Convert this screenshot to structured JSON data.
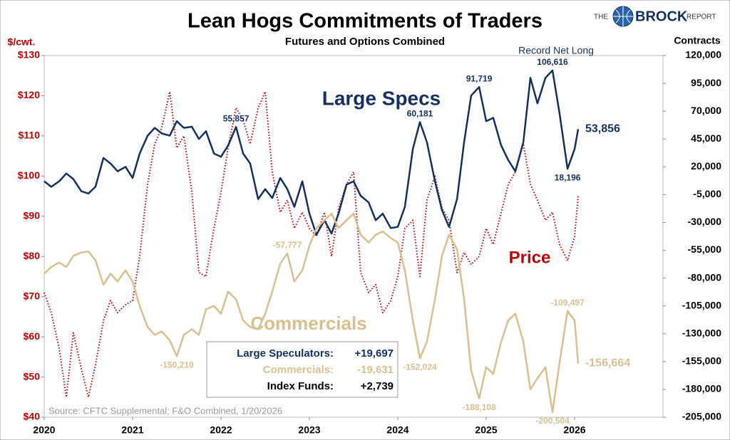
{
  "logo": {
    "pre": "THE",
    "name": "BROCK",
    "post": "REPORT"
  },
  "chart_data": {
    "type": "line",
    "title": "Lean Hogs Commitments of Traders",
    "subtitle": "Futures and Options Combined",
    "y_label": "$/cwt.",
    "y2_label": "Contracts",
    "source": "Source: CFTC Supplemental; F&O Combined, 1/20/2026",
    "annotations": [
      {
        "text": "Record Net Long",
        "color": "#14305e"
      },
      {
        "text": "Large Specs",
        "color": "#14305e"
      },
      {
        "text": "Commercials",
        "color": "#d8bf8f"
      },
      {
        "text": "Price",
        "color": "#c00000"
      }
    ],
    "summary": [
      {
        "label": "Large Speculators:",
        "value": "+19,697",
        "color": "#14305e"
      },
      {
        "label": "Commercials:",
        "value": "-19,631",
        "color": "#d8bf8f"
      },
      {
        "label": "Index Funds:",
        "value": "+2,739",
        "color": "#000000"
      }
    ],
    "xlim": [
      2020,
      2027
    ],
    "xticks": [
      2020,
      2021,
      2022,
      2023,
      2024,
      2025,
      2026
    ],
    "ylim": [
      40,
      130
    ],
    "yticks": [
      {
        "value": 40,
        "label": "$40"
      },
      {
        "value": 50,
        "label": "$50"
      },
      {
        "value": 60,
        "label": "$60"
      },
      {
        "value": 70,
        "label": "$70"
      },
      {
        "value": 80,
        "label": "$80"
      },
      {
        "value": 90,
        "label": "$90"
      },
      {
        "value": 100,
        "label": "$100"
      },
      {
        "value": 110,
        "label": "$110"
      },
      {
        "value": 120,
        "label": "$120"
      },
      {
        "value": 130,
        "label": "$130"
      }
    ],
    "y2lim": [
      -205000,
      120000
    ],
    "y2ticks": [
      {
        "value": 120000,
        "label": "120,000"
      },
      {
        "value": 95000,
        "label": "95,000"
      },
      {
        "value": 70000,
        "label": "70,000"
      },
      {
        "value": 45000,
        "label": "45,000"
      },
      {
        "value": 20000,
        "label": "20,000"
      },
      {
        "value": -5000,
        "label": "-5,000"
      },
      {
        "value": -30000,
        "label": "-30,000"
      },
      {
        "value": -55000,
        "label": "-55,000"
      },
      {
        "value": -80000,
        "label": "-80,000"
      },
      {
        "value": -105000,
        "label": "-105,000"
      },
      {
        "value": -130000,
        "label": "-130,000"
      },
      {
        "value": -155000,
        "label": "-155,000"
      },
      {
        "value": -180000,
        "label": "-180,000"
      },
      {
        "value": -205000,
        "label": "-205,000"
      }
    ],
    "x": [
      2020,
      2020.08,
      2020.17,
      2020.25,
      2020.33,
      2020.42,
      2020.5,
      2020.58,
      2020.67,
      2020.75,
      2020.83,
      2020.92,
      2021,
      2021.08,
      2021.17,
      2021.25,
      2021.33,
      2021.42,
      2021.5,
      2021.58,
      2021.67,
      2021.75,
      2021.83,
      2021.92,
      2022,
      2022.08,
      2022.17,
      2022.25,
      2022.33,
      2022.42,
      2022.5,
      2022.58,
      2022.67,
      2022.75,
      2022.83,
      2022.92,
      2023,
      2023.08,
      2023.17,
      2023.25,
      2023.33,
      2023.42,
      2023.5,
      2023.58,
      2023.67,
      2023.75,
      2023.83,
      2023.92,
      2024,
      2024.08,
      2024.17,
      2024.25,
      2024.33,
      2024.42,
      2024.5,
      2024.58,
      2024.67,
      2024.75,
      2024.83,
      2024.92,
      2025,
      2025.08,
      2025.17,
      2025.25,
      2025.33,
      2025.42,
      2025.5,
      2025.58,
      2025.67,
      2025.75,
      2025.83,
      2025.92,
      2026,
      2026.04
    ],
    "series": [
      {
        "name": "Price",
        "color": "#c00000",
        "style": "dotted",
        "values": [
          71,
          66,
          57,
          45,
          61,
          52,
          45,
          53,
          64,
          69,
          66,
          68,
          69,
          80,
          98,
          108,
          112,
          121,
          107,
          110,
          96,
          76,
          75,
          87,
          96,
          107,
          117,
          114,
          108,
          117,
          121,
          101,
          91,
          94,
          87,
          91,
          87,
          85,
          91,
          80,
          92,
          98,
          101,
          76,
          71,
          73,
          66,
          69,
          75,
          87,
          89,
          75,
          94,
          100,
          92,
          89,
          76,
          81,
          78,
          80,
          87,
          83,
          91,
          98,
          101,
          108,
          98,
          94,
          89,
          91,
          83,
          79,
          85,
          95
        ]
      },
      {
        "name": "Large Specs",
        "color": "#14305e",
        "style": "solid",
        "axis": "y2",
        "values": [
          7000,
          2000,
          7000,
          14000,
          9000,
          -2000,
          -4000,
          2000,
          28000,
          23000,
          16000,
          20000,
          10000,
          32000,
          48000,
          55000,
          50000,
          48000,
          61000,
          55000,
          56000,
          45000,
          52000,
          32000,
          29000,
          39000,
          55857,
          32000,
          23000,
          -9000,
          0,
          -8000,
          10000,
          0,
          -16000,
          7000,
          -22000,
          -41000,
          -28000,
          -40000,
          -22000,
          4000,
          7000,
          -6000,
          -12000,
          -28000,
          -22000,
          -35000,
          -34000,
          -16000,
          36000,
          60181,
          42000,
          7000,
          -19000,
          -34000,
          -9000,
          42000,
          84000,
          91719,
          61000,
          64000,
          39000,
          26000,
          16000,
          42000,
          100000,
          77000,
          100000,
          106616,
          68000,
          18196,
          36000,
          53856
        ],
        "value_labels": [
          null,
          null,
          null,
          null,
          null,
          null,
          null,
          null,
          null,
          null,
          null,
          null,
          null,
          null,
          null,
          null,
          null,
          null,
          null,
          null,
          null,
          null,
          null,
          null,
          null,
          null,
          "55,857",
          null,
          null,
          null,
          null,
          null,
          null,
          null,
          null,
          null,
          null,
          null,
          null,
          null,
          null,
          null,
          null,
          null,
          null,
          null,
          null,
          null,
          null,
          null,
          null,
          "60,181",
          null,
          null,
          null,
          null,
          null,
          null,
          null,
          "91,719",
          null,
          null,
          null,
          null,
          null,
          null,
          null,
          null,
          null,
          "106,616",
          null,
          "18,196",
          null,
          "53,856"
        ]
      },
      {
        "name": "Commercials",
        "color": "#d8bf8f",
        "style": "solid",
        "axis": "y2",
        "values": [
          -76000,
          -70000,
          -66000,
          -70000,
          -60000,
          -57000,
          -56000,
          -64000,
          -86000,
          -76000,
          -83000,
          -73000,
          -83000,
          -105000,
          -124000,
          -131000,
          -128000,
          -136000,
          -150210,
          -131000,
          -126000,
          -131000,
          -108000,
          -105000,
          -112000,
          -92000,
          -99000,
          -118000,
          -124000,
          -126000,
          -112000,
          -92000,
          -67000,
          -57777,
          -83000,
          -73000,
          -51000,
          -35000,
          -28000,
          -22000,
          -35000,
          -28000,
          -22000,
          -41000,
          -48000,
          -41000,
          -38000,
          -44000,
          -48000,
          -73000,
          -118000,
          -152024,
          -137000,
          -99000,
          -60000,
          -41000,
          -54000,
          -99000,
          -163000,
          -188108,
          -160000,
          -166000,
          -137000,
          -118000,
          -112000,
          -137000,
          -180000,
          -170000,
          -160000,
          -200504,
          -156000,
          -109497,
          -118000,
          -156664
        ],
        "value_labels": [
          null,
          null,
          null,
          null,
          null,
          null,
          null,
          null,
          null,
          null,
          null,
          null,
          null,
          null,
          null,
          null,
          null,
          null,
          "-150,210",
          null,
          null,
          null,
          null,
          null,
          null,
          null,
          null,
          null,
          null,
          null,
          null,
          null,
          null,
          "-57,777",
          null,
          null,
          null,
          null,
          null,
          null,
          null,
          null,
          null,
          null,
          null,
          null,
          null,
          null,
          null,
          null,
          null,
          "-152,024",
          null,
          null,
          null,
          null,
          null,
          null,
          null,
          "-188,108",
          null,
          null,
          null,
          null,
          null,
          null,
          null,
          null,
          null,
          "-200,504",
          null,
          "-109,497",
          null,
          "-156,664"
        ]
      }
    ]
  }
}
